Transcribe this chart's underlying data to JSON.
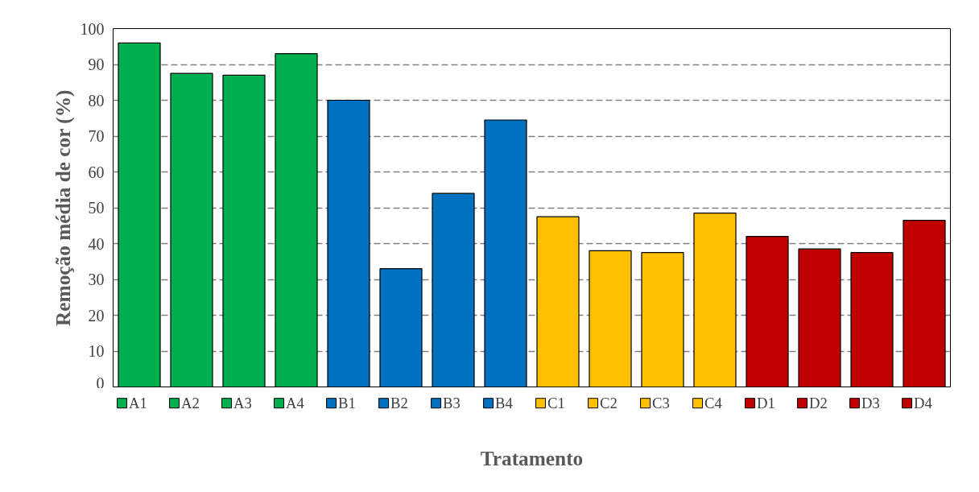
{
  "chart_data": {
    "type": "bar",
    "xlabel": "Tratamento",
    "ylabel": "Remoção média de cor (%)",
    "categories": [
      null,
      null,
      null,
      null,
      null,
      null,
      null,
      null,
      null,
      null,
      null,
      null,
      null,
      null,
      null,
      null
    ],
    "series": [
      {
        "name": "A1",
        "color": "#00b050",
        "values": [
          96,
          null,
          null,
          null,
          null,
          null,
          null,
          null,
          null,
          null,
          null,
          null,
          null,
          null,
          null,
          null
        ]
      },
      {
        "name": "A2",
        "color": "#00b050",
        "values": [
          null,
          87.5,
          null,
          null,
          null,
          null,
          null,
          null,
          null,
          null,
          null,
          null,
          null,
          null,
          null,
          null
        ]
      },
      {
        "name": "A3",
        "color": "#00b050",
        "values": [
          null,
          null,
          87,
          null,
          null,
          null,
          null,
          null,
          null,
          null,
          null,
          null,
          null,
          null,
          null,
          null
        ]
      },
      {
        "name": "A4",
        "color": "#00b050",
        "values": [
          null,
          null,
          null,
          93,
          null,
          null,
          null,
          null,
          null,
          null,
          null,
          null,
          null,
          null,
          null,
          null
        ]
      },
      {
        "name": "B1",
        "color": "#0070c0",
        "values": [
          null,
          null,
          null,
          null,
          80,
          null,
          null,
          null,
          null,
          null,
          null,
          null,
          null,
          null,
          null,
          null
        ]
      },
      {
        "name": "B2",
        "color": "#0070c0",
        "values": [
          null,
          null,
          null,
          null,
          null,
          33,
          null,
          null,
          null,
          null,
          null,
          null,
          null,
          null,
          null,
          null
        ]
      },
      {
        "name": "B3",
        "color": "#0070c0",
        "values": [
          null,
          null,
          null,
          null,
          null,
          null,
          54,
          null,
          null,
          null,
          null,
          null,
          null,
          null,
          null,
          null
        ]
      },
      {
        "name": "B4",
        "color": "#0070c0",
        "values": [
          null,
          null,
          null,
          null,
          null,
          null,
          null,
          74.5,
          null,
          null,
          null,
          null,
          null,
          null,
          null,
          null
        ]
      },
      {
        "name": "C1",
        "color": "#ffc000",
        "values": [
          null,
          null,
          null,
          null,
          null,
          null,
          null,
          null,
          47.5,
          null,
          null,
          null,
          null,
          null,
          null,
          null
        ]
      },
      {
        "name": "C2",
        "color": "#ffc000",
        "values": [
          null,
          null,
          null,
          null,
          null,
          null,
          null,
          null,
          null,
          38,
          null,
          null,
          null,
          null,
          null,
          null
        ]
      },
      {
        "name": "C3",
        "color": "#ffc000",
        "values": [
          null,
          null,
          null,
          null,
          null,
          null,
          null,
          null,
          null,
          null,
          37.5,
          null,
          null,
          null,
          null,
          null
        ]
      },
      {
        "name": "C4",
        "color": "#ffc000",
        "values": [
          null,
          null,
          null,
          null,
          null,
          null,
          null,
          null,
          null,
          null,
          null,
          48.5,
          null,
          null,
          null,
          null
        ]
      },
      {
        "name": "D1",
        "color": "#c00000",
        "values": [
          null,
          null,
          null,
          null,
          null,
          null,
          null,
          null,
          null,
          null,
          null,
          null,
          42,
          null,
          null,
          null
        ]
      },
      {
        "name": "D2",
        "color": "#c00000",
        "values": [
          null,
          null,
          null,
          null,
          null,
          null,
          null,
          null,
          null,
          null,
          null,
          null,
          null,
          38.5,
          null,
          null
        ]
      },
      {
        "name": "D3",
        "color": "#c00000",
        "values": [
          null,
          null,
          null,
          null,
          null,
          null,
          null,
          null,
          null,
          null,
          null,
          null,
          null,
          null,
          37.5,
          null
        ]
      },
      {
        "name": "D4",
        "color": "#c00000",
        "values": [
          null,
          null,
          null,
          null,
          null,
          null,
          null,
          null,
          null,
          null,
          null,
          null,
          null,
          null,
          null,
          46.5
        ]
      }
    ],
    "ylim": [
      0,
      100
    ],
    "yticks": [
      0,
      10,
      20,
      30,
      40,
      50,
      60,
      70,
      80,
      90,
      100
    ],
    "grid": "y",
    "legend": "bottom"
  }
}
